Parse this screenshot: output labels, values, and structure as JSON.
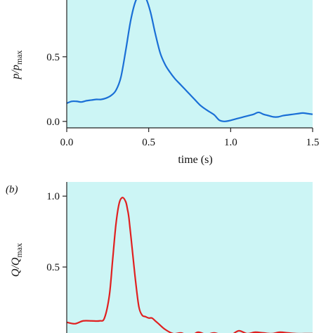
{
  "chart_data": [
    {
      "type": "line",
      "panel": "",
      "xlabel": "time (s)",
      "ylabel_main": "p/p",
      "ylabel_sub": "max",
      "xlim": [
        0,
        1.5
      ],
      "ylim": [
        -0.05,
        0.95
      ],
      "xticks": [
        0,
        0.5,
        1,
        1.5
      ],
      "xtick_labels": [
        "0.0",
        "0.5",
        "1.0",
        "1.5"
      ],
      "yticks": [
        0,
        0.5
      ],
      "ytick_labels": [
        "0.0",
        "0.5"
      ],
      "background": "#ccf5f5",
      "series": [
        {
          "color": "#1a6fd6",
          "x": [
            0,
            0.03,
            0.06,
            0.09,
            0.12,
            0.15,
            0.18,
            0.21,
            0.24,
            0.27,
            0.3,
            0.33,
            0.36,
            0.39,
            0.42,
            0.45,
            0.48,
            0.51,
            0.54,
            0.57,
            0.6,
            0.63,
            0.66,
            0.69,
            0.72,
            0.75,
            0.78,
            0.81,
            0.84,
            0.87,
            0.9,
            0.93,
            0.96,
            0.99,
            1.02,
            1.05,
            1.08,
            1.11,
            1.14,
            1.17,
            1.2,
            1.23,
            1.26,
            1.29,
            1.32,
            1.35,
            1.38,
            1.41,
            1.44,
            1.47,
            1.5
          ],
          "y": [
            0.14,
            0.155,
            0.155,
            0.15,
            0.16,
            0.165,
            0.17,
            0.17,
            0.18,
            0.2,
            0.24,
            0.34,
            0.55,
            0.78,
            0.93,
            0.98,
            0.96,
            0.85,
            0.68,
            0.53,
            0.44,
            0.38,
            0.33,
            0.29,
            0.25,
            0.21,
            0.17,
            0.13,
            0.1,
            0.075,
            0.05,
            0.01,
            0.0,
            0.005,
            0.015,
            0.025,
            0.035,
            0.045,
            0.055,
            0.07,
            0.055,
            0.045,
            0.035,
            0.035,
            0.045,
            0.05,
            0.055,
            0.06,
            0.065,
            0.06,
            0.055
          ]
        }
      ]
    },
    {
      "type": "line",
      "panel": "(b)",
      "xlabel": "",
      "ylabel_main": "Q/Q",
      "ylabel_sub": "max",
      "xlim": [
        0,
        1.5
      ],
      "ylim": [
        -0.02,
        1.1
      ],
      "xticks": [
        0,
        0.5,
        1,
        1.5
      ],
      "yticks": [
        0,
        0.5,
        1
      ],
      "ytick_labels": [
        "0.0",
        "0.5",
        "1.0"
      ],
      "background": "#ccf5f5",
      "series": [
        {
          "color": "#e02020",
          "x": [
            0,
            0.05,
            0.1,
            0.15,
            0.2,
            0.23,
            0.26,
            0.28,
            0.3,
            0.32,
            0.34,
            0.36,
            0.37,
            0.38,
            0.4,
            0.42,
            0.44,
            0.46,
            0.48,
            0.5,
            0.52,
            0.54,
            0.56,
            0.6,
            0.65,
            0.7,
            0.75,
            0.8,
            0.85,
            0.9,
            0.95,
            1.0,
            1.05,
            1.1,
            1.15,
            1.2,
            1.25,
            1.3,
            1.35,
            1.4,
            1.45,
            1.5
          ],
          "y": [
            0.11,
            0.1,
            0.12,
            0.12,
            0.12,
            0.14,
            0.3,
            0.55,
            0.8,
            0.95,
            0.99,
            0.96,
            0.91,
            0.84,
            0.62,
            0.4,
            0.22,
            0.16,
            0.15,
            0.14,
            0.14,
            0.12,
            0.1,
            0.06,
            0.03,
            0.035,
            0.01,
            0.04,
            0.025,
            0.035,
            0.02,
            0.02,
            0.05,
            0.03,
            0.04,
            0.035,
            0.03,
            0.04,
            0.035,
            0.03,
            0.03,
            0.03
          ]
        }
      ]
    }
  ]
}
